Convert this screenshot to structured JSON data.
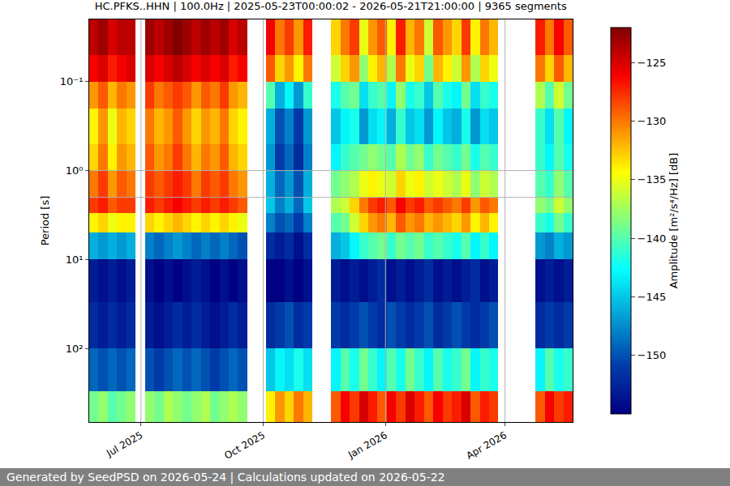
{
  "chart_data": {
    "type": "heatmap",
    "title": "HC.PFKS..HHN | 100.0Hz | 2025-05-23T00:00:02 - 2026-05-21T21:00:00 | 9365 segments",
    "y_label": "Period [s]",
    "footer": "Generated by SeedPSD on 2026-05-24 | Calculations updated on 2026-05-22",
    "log": "y",
    "grid": true,
    "xlim": [
      "2025-05-23T00:00:02",
      "2026-05-21T21:00:00"
    ],
    "xticks": [
      {
        "value": "2025-07-01",
        "label": "Jul 2025"
      },
      {
        "value": "2025-10-01",
        "label": "Oct 2025"
      },
      {
        "value": "2026-01-01",
        "label": "Jan 2026"
      },
      {
        "value": "2026-04-01",
        "label": "Apr 2026"
      }
    ],
    "ylim": [
      0.02,
      670
    ],
    "yticks": [
      {
        "value": 0.1,
        "label": "10⁻¹"
      },
      {
        "value": 1,
        "label": "10⁰"
      },
      {
        "value": 10,
        "label": "10¹"
      },
      {
        "value": 100,
        "label": "10²"
      }
    ],
    "colorbar": {
      "title": "Amplitude [m²/s⁴/Hz] [dB]",
      "range": [
        -155,
        -122
      ],
      "ticks": [
        -150,
        -145,
        -140,
        -135,
        -130,
        -125
      ]
    },
    "x": [
      "2025-05-23T00:00:02",
      "2025-05-30",
      "2025-06-06",
      "2025-06-13",
      "2025-06-20",
      "2025-06-27",
      "2025-07-04",
      "2025-07-11",
      "2025-07-18",
      "2025-07-25",
      "2025-08-01",
      "2025-08-08",
      "2025-08-15",
      "2025-08-22",
      "2025-08-29",
      "2025-09-05",
      "2025-09-12",
      "2025-09-19",
      "2025-09-26",
      "2025-10-03",
      "2025-10-10",
      "2025-10-17",
      "2025-10-24",
      "2025-10-31",
      "2025-11-07",
      "2025-11-14",
      "2025-11-21",
      "2025-11-28",
      "2025-12-05",
      "2025-12-12",
      "2025-12-19",
      "2025-12-26",
      "2026-01-02",
      "2026-01-09",
      "2026-01-16",
      "2026-01-23",
      "2026-01-30",
      "2026-02-06",
      "2026-02-13",
      "2026-02-20",
      "2026-02-27",
      "2026-03-06",
      "2026-03-13",
      "2026-03-20",
      "2026-03-27",
      "2026-04-03",
      "2026-04-10",
      "2026-04-17",
      "2026-04-24",
      "2026-05-01",
      "2026-05-08",
      "2026-05-15",
      "2026-05-21T21:00:00"
    ],
    "y": [
      0.02,
      0.05,
      0.1,
      0.2,
      0.5,
      1,
      2,
      3,
      5,
      10,
      30,
      100,
      300,
      670
    ],
    "z": [
      [
        -124,
        -123,
        -125,
        -124,
        -124,
        null,
        -123,
        -124,
        -123,
        -122,
        -123,
        -124,
        -123,
        -124,
        -123,
        -125,
        -124,
        null,
        null,
        -126,
        -130,
        -128,
        -131,
        -127,
        null,
        null,
        -133,
        -130,
        -128,
        -135,
        -131,
        -129,
        -134,
        -127,
        -132,
        -130,
        -136,
        -129,
        -131,
        -133,
        -128,
        -134,
        -130,
        -132,
        null,
        null,
        null,
        null,
        -127,
        -130,
        -126,
        -129
      ],
      [
        -126,
        -125,
        -127,
        -126,
        -125,
        null,
        -125,
        -126,
        -125,
        -124,
        -125,
        -126,
        -125,
        -126,
        -125,
        -127,
        -126,
        null,
        null,
        -129,
        -133,
        -131,
        -134,
        -130,
        null,
        null,
        -136,
        -133,
        -131,
        -138,
        -134,
        -132,
        -137,
        -130,
        -135,
        -133,
        -139,
        -132,
        -134,
        -136,
        -131,
        -137,
        -133,
        -135,
        null,
        null,
        null,
        null,
        -130,
        -133,
        -129,
        -132
      ],
      [
        -131,
        -129,
        -132,
        -130,
        -131,
        null,
        -128,
        -130,
        -129,
        -128,
        -129,
        -131,
        -129,
        -130,
        -128,
        -131,
        -132,
        null,
        null,
        -140,
        -146,
        -143,
        -147,
        -141,
        null,
        null,
        -142,
        -140,
        -139,
        -144,
        -141,
        -140,
        -143,
        -138,
        -142,
        -141,
        -145,
        -140,
        -142,
        -143,
        -139,
        -144,
        -141,
        -142,
        null,
        null,
        null,
        null,
        -137,
        -140,
        -136,
        -139
      ],
      [
        -134,
        -131,
        -135,
        -132,
        -133,
        null,
        -130,
        -132,
        -131,
        -129,
        -131,
        -133,
        -131,
        -132,
        -130,
        -133,
        -134,
        null,
        null,
        -146,
        -150,
        -148,
        -151,
        -147,
        null,
        null,
        -145,
        -143,
        -142,
        -147,
        -144,
        -143,
        -146,
        -141,
        -145,
        -144,
        -147,
        -143,
        -145,
        -146,
        -142,
        -147,
        -144,
        -145,
        null,
        null,
        null,
        null,
        -141,
        -144,
        -140,
        -143
      ],
      [
        -133,
        -130,
        -134,
        -131,
        -132,
        null,
        -129,
        -131,
        -130,
        -128,
        -130,
        -132,
        -130,
        -131,
        -129,
        -132,
        -133,
        null,
        null,
        -147,
        -151,
        -149,
        -152,
        -148,
        null,
        null,
        -143,
        -141,
        -140,
        -139,
        -138,
        -139,
        -140,
        -137,
        -139,
        -138,
        -141,
        -139,
        -140,
        -141,
        -139,
        -142,
        -140,
        -141,
        null,
        null,
        null,
        null,
        -141,
        -143,
        -140,
        -142
      ],
      [
        -130,
        -128,
        -131,
        -129,
        -130,
        null,
        -128,
        -129,
        -128,
        -127,
        -128,
        -130,
        -128,
        -129,
        -128,
        -130,
        -131,
        null,
        null,
        -146,
        -149,
        -147,
        -150,
        -146,
        null,
        null,
        -139,
        -138,
        -137,
        -135,
        -134,
        -135,
        -136,
        -133,
        -135,
        -134,
        -136,
        -135,
        -136,
        -137,
        -135,
        -138,
        -136,
        -137,
        null,
        null,
        null,
        null,
        -140,
        -141,
        -138,
        -140
      ],
      [
        -128,
        -127,
        -129,
        -128,
        -128,
        null,
        -127,
        -128,
        -127,
        -126,
        -127,
        -128,
        -127,
        -128,
        -127,
        -128,
        -129,
        null,
        null,
        -145,
        -148,
        -146,
        -149,
        -145,
        null,
        null,
        -137,
        -136,
        -133,
        -130,
        -128,
        -127,
        -129,
        -126,
        -128,
        -127,
        -129,
        -128,
        -129,
        -130,
        -128,
        -131,
        -129,
        -130,
        null,
        null,
        null,
        null,
        -138,
        -139,
        -136,
        -138
      ],
      [
        -134,
        -133,
        -135,
        -134,
        -134,
        null,
        -133,
        -134,
        -133,
        -132,
        -133,
        -134,
        -133,
        -134,
        -133,
        -134,
        -135,
        null,
        null,
        -148,
        -150,
        -149,
        -151,
        -148,
        null,
        null,
        -140,
        -139,
        -136,
        -133,
        -131,
        -130,
        -132,
        -129,
        -131,
        -130,
        -132,
        -131,
        -132,
        -133,
        -131,
        -134,
        -132,
        -134,
        null,
        null,
        null,
        null,
        -141,
        -142,
        -139,
        -141
      ],
      [
        -146,
        -147,
        -146,
        -147,
        -146,
        null,
        -148,
        -149,
        -148,
        -147,
        -148,
        -149,
        -148,
        -149,
        -148,
        -149,
        -150,
        null,
        null,
        -152,
        -153,
        -152,
        -154,
        -152,
        null,
        null,
        -146,
        -145,
        -143,
        -141,
        -140,
        -139,
        -141,
        -139,
        -140,
        -139,
        -141,
        -140,
        -141,
        -142,
        -140,
        -143,
        -141,
        -143,
        null,
        null,
        null,
        null,
        -147,
        -148,
        -146,
        -147
      ],
      [
        -153,
        -154,
        -153,
        -154,
        -153,
        null,
        -154,
        -155,
        -154,
        -155,
        -154,
        -153,
        -154,
        -155,
        -154,
        -155,
        -154,
        null,
        null,
        -155,
        -155,
        -154,
        -155,
        -154,
        null,
        null,
        -153,
        -154,
        -153,
        -154,
        -153,
        -152,
        -154,
        -153,
        -154,
        -153,
        -152,
        -154,
        -153,
        -154,
        -153,
        -152,
        -154,
        -153,
        null,
        null,
        null,
        null,
        -154,
        -153,
        -154,
        -153
      ],
      [
        -152,
        -153,
        -152,
        -153,
        -152,
        null,
        -153,
        -154,
        -153,
        -152,
        -153,
        -152,
        -153,
        -154,
        -153,
        -152,
        -153,
        null,
        null,
        -152,
        -151,
        -150,
        -152,
        -151,
        null,
        null,
        -151,
        -152,
        -151,
        -150,
        -151,
        -152,
        -150,
        -151,
        -152,
        -151,
        -150,
        -152,
        -151,
        -150,
        -151,
        -152,
        -151,
        -150,
        null,
        null,
        null,
        null,
        -152,
        -151,
        -152,
        -151
      ],
      [
        -149,
        -150,
        -149,
        -150,
        -149,
        null,
        -150,
        -151,
        -150,
        -149,
        -150,
        -149,
        -150,
        -151,
        -150,
        -149,
        -150,
        null,
        null,
        -145,
        -143,
        -144,
        -142,
        -144,
        null,
        null,
        -143,
        -140,
        -142,
        -139,
        -141,
        -143,
        -140,
        -142,
        -139,
        -141,
        -143,
        -140,
        -142,
        -141,
        -139,
        -143,
        -141,
        -142,
        null,
        null,
        null,
        null,
        -143,
        -140,
        -142,
        -141
      ],
      [
        -139,
        -138,
        -140,
        -139,
        -138,
        null,
        -138,
        -139,
        -137,
        -138,
        -139,
        -138,
        -137,
        -139,
        -138,
        -137,
        -138,
        null,
        null,
        -134,
        -131,
        -133,
        -130,
        -132,
        null,
        null,
        -129,
        -126,
        -128,
        -125,
        -127,
        -129,
        -126,
        -128,
        -125,
        -127,
        -129,
        -126,
        -128,
        -127,
        -125,
        -129,
        -127,
        -128,
        null,
        null,
        null,
        null,
        -129,
        -126,
        -128,
        -127
      ]
    ]
  }
}
